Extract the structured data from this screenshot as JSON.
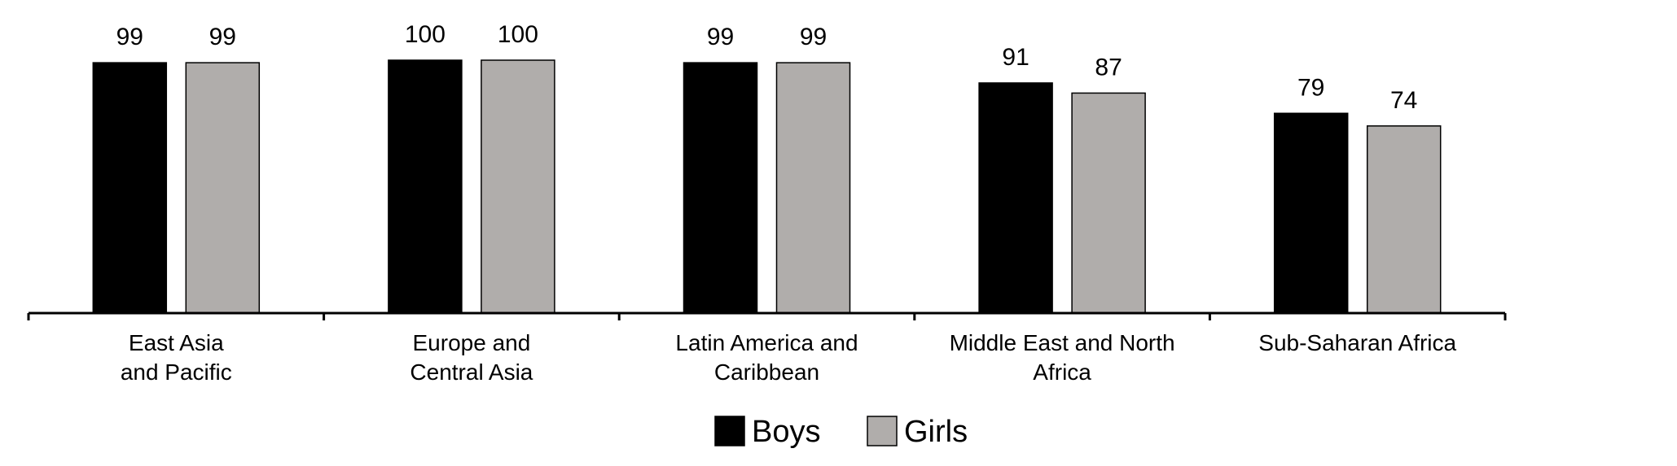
{
  "chart_data": {
    "type": "bar",
    "categories": [
      [
        "East Asia",
        "and Pacific"
      ],
      [
        "Europe and",
        "Central Asia"
      ],
      [
        "Latin America and",
        "Caribbean"
      ],
      [
        "Middle East and North",
        "Africa"
      ],
      [
        "Sub-Saharan Africa"
      ]
    ],
    "series": [
      {
        "name": "Boys",
        "color": "#000000",
        "values": [
          99,
          100,
          99,
          91,
          79
        ]
      },
      {
        "name": "Girls",
        "color": "#b0adab",
        "values": [
          99,
          100,
          99,
          87,
          74
        ]
      }
    ],
    "ylim": [
      0,
      100
    ],
    "grid": false,
    "legend": "bottom-center"
  }
}
